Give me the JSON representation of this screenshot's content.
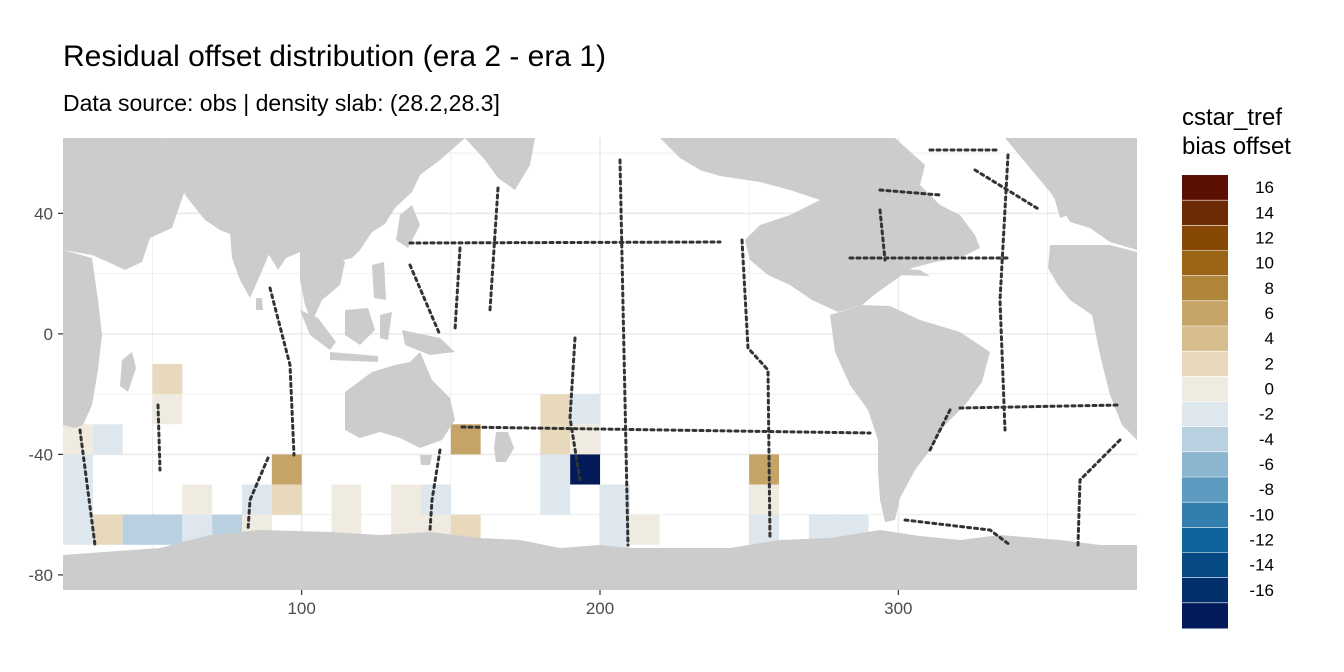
{
  "chart_data": {
    "type": "heatmap",
    "title": "Residual offset distribution (era 2 - era 1)",
    "subtitle": "Data source: obs | density slab: (28.2,28.3]",
    "xlabel": "",
    "ylabel": "",
    "xlim": [
      20,
      380
    ],
    "ylim": [
      -85,
      65
    ],
    "x_ticks": [
      100,
      200,
      300
    ],
    "y_ticks": [
      40,
      0,
      -40,
      -80
    ],
    "grid": true,
    "legend": {
      "title_lines": [
        "cstar_tref",
        "bias offset"
      ],
      "placement": "right",
      "labels": [
        "16",
        "14",
        "12",
        "10",
        "8",
        "6",
        "4",
        "2",
        "0",
        "-2",
        "-4",
        "-6",
        "-8",
        "-10",
        "-12",
        "-14",
        "-16"
      ],
      "colors": [
        "#5a0f02",
        "#6e2a04",
        "#874806",
        "#9a6514",
        "#b1853a",
        "#c6a468",
        "#d6bd8e",
        "#e8d9bd",
        "#f0ebe0",
        "#dde7ed",
        "#b8d0e0",
        "#8bb6cf",
        "#5d9abf",
        "#327eac",
        "#10639b",
        "#064a85",
        "#03306d",
        "#021a5a"
      ]
    },
    "cells": [
      {
        "lon": 55,
        "lat": -15,
        "value": 3
      },
      {
        "lon": 55,
        "lat": -25,
        "value": 1
      },
      {
        "lon": 25,
        "lat": -35,
        "value": 1
      },
      {
        "lon": 35,
        "lat": -35,
        "value": -1
      },
      {
        "lon": 25,
        "lat": -45,
        "value": -1
      },
      {
        "lon": 25,
        "lat": -55,
        "value": -1
      },
      {
        "lon": 25,
        "lat": -65,
        "value": -1
      },
      {
        "lon": 35,
        "lat": -65,
        "value": 3
      },
      {
        "lon": 45,
        "lat": -65,
        "value": -3
      },
      {
        "lon": 55,
        "lat": -65,
        "value": -3
      },
      {
        "lon": 65,
        "lat": -55,
        "value": 1
      },
      {
        "lon": 65,
        "lat": -65,
        "value": -1
      },
      {
        "lon": 75,
        "lat": -65,
        "value": -3
      },
      {
        "lon": 85,
        "lat": -55,
        "value": -1
      },
      {
        "lon": 85,
        "lat": -65,
        "value": 1
      },
      {
        "lon": 95,
        "lat": -45,
        "value": 7
      },
      {
        "lon": 95,
        "lat": -55,
        "value": 3
      },
      {
        "lon": 115,
        "lat": -55,
        "value": 1
      },
      {
        "lon": 115,
        "lat": -65,
        "value": 1
      },
      {
        "lon": 135,
        "lat": -55,
        "value": 1
      },
      {
        "lon": 135,
        "lat": -65,
        "value": 1
      },
      {
        "lon": 145,
        "lat": -55,
        "value": -1
      },
      {
        "lon": 145,
        "lat": -65,
        "value": 1
      },
      {
        "lon": 155,
        "lat": -35,
        "value": 7
      },
      {
        "lon": 155,
        "lat": -65,
        "value": 3
      },
      {
        "lon": 185,
        "lat": -25,
        "value": 3
      },
      {
        "lon": 185,
        "lat": -35,
        "value": 3
      },
      {
        "lon": 185,
        "lat": -45,
        "value": -1
      },
      {
        "lon": 185,
        "lat": -55,
        "value": -1
      },
      {
        "lon": 195,
        "lat": -25,
        "value": -1
      },
      {
        "lon": 195,
        "lat": -35,
        "value": 1
      },
      {
        "lon": 195,
        "lat": -45,
        "value": -17
      },
      {
        "lon": 205,
        "lat": -55,
        "value": -1
      },
      {
        "lon": 205,
        "lat": -65,
        "value": -1
      },
      {
        "lon": 205,
        "lat": -75,
        "value": -1
      },
      {
        "lon": 215,
        "lat": -65,
        "value": 1
      },
      {
        "lon": 255,
        "lat": -45,
        "value": 7
      },
      {
        "lon": 255,
        "lat": -55,
        "value": 1
      },
      {
        "lon": 255,
        "lat": -65,
        "value": -1
      },
      {
        "lon": 275,
        "lat": -65,
        "value": -1
      },
      {
        "lon": 285,
        "lat": -65,
        "value": -1
      }
    ]
  },
  "map": {
    "land_color": "#cccccc",
    "panel_color": "#ffffff",
    "grid_color": "#ebebeb",
    "track_color": "#333333"
  }
}
